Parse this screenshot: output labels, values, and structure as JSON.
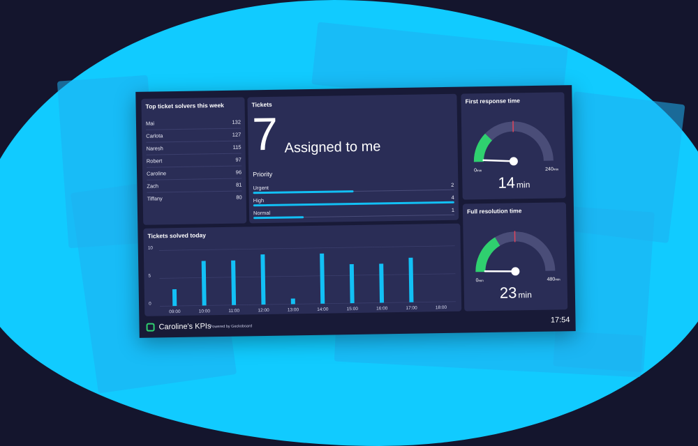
{
  "solvers": {
    "title": "Top ticket solvers this week",
    "rows": [
      {
        "name": "Mai",
        "value": "132"
      },
      {
        "name": "Carlota",
        "value": "127"
      },
      {
        "name": "Naresh",
        "value": "115"
      },
      {
        "name": "Robert",
        "value": "97"
      },
      {
        "name": "Caroline",
        "value": "96"
      },
      {
        "name": "Zach",
        "value": "81"
      },
      {
        "name": "Tiffany",
        "value": "80"
      }
    ]
  },
  "tickets": {
    "title": "Tickets",
    "number": "7",
    "label": "Assigned to me",
    "priority_title": "Priority",
    "priorities": [
      {
        "label": "Urgent",
        "value": "2",
        "fraction": 0.5
      },
      {
        "label": "High",
        "value": "4",
        "fraction": 1.0
      },
      {
        "label": "Normal",
        "value": "1",
        "fraction": 0.25
      }
    ]
  },
  "first_response": {
    "title": "First response time",
    "min_label": "0",
    "max_label": "240",
    "unit_small": "min",
    "value": "14",
    "unit": "min",
    "fraction": 0.06
  },
  "full_resolution": {
    "title": "Full resolution time",
    "min_label": "0",
    "max_label": "480",
    "unit_small": "min",
    "value": "23",
    "unit": "min",
    "fraction": 0.05
  },
  "chart_data": {
    "type": "bar",
    "title": "Tickets solved today",
    "categories": [
      "09:00",
      "10:00",
      "11:00",
      "12:00",
      "13:00",
      "14:00",
      "15:00",
      "16:00",
      "17:00",
      "18:00"
    ],
    "bars": [
      {
        "x": "09:00",
        "value": 3
      },
      {
        "x": "10:00",
        "value": 8
      },
      {
        "x": "11:00",
        "value": 8
      },
      {
        "x": "12:00",
        "value": 9
      },
      {
        "x": "13:00",
        "value": 1
      },
      {
        "x": "14:00",
        "value": 9
      },
      {
        "x": "15:00",
        "value": 7
      },
      {
        "x": "16:00",
        "value": 7
      },
      {
        "x": "17:00",
        "value": 8
      }
    ],
    "yticks": [
      "10",
      "5",
      "0"
    ],
    "ylim": [
      0,
      10
    ],
    "grid": true,
    "color": "#12c0f5"
  },
  "footer": {
    "brand": "Caroline's KPIs",
    "powered": "Powered by Geckoboard",
    "time": "17:54"
  },
  "colors": {
    "background": "#14152d",
    "blob": "#11cbff",
    "panel": "#2a2d56",
    "accent": "#12c0f5",
    "gauge_green": "#2fd06f",
    "gauge_red": "#e0445a"
  }
}
